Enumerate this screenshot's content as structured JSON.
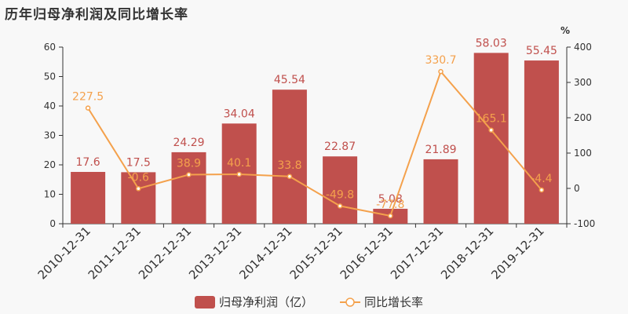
{
  "title": "历年归母净利润及同比增长率",
  "chart_data": {
    "type": "bar+line",
    "categories": [
      "2010-12-31",
      "2011-12-31",
      "2012-12-31",
      "2013-12-31",
      "2014-12-31",
      "2015-12-31",
      "2016-12-31",
      "2017-12-31",
      "2018-12-31",
      "2019-12-31"
    ],
    "bar_series": {
      "name": "归母净利润（亿）",
      "values": [
        17.6,
        17.5,
        24.29,
        34.04,
        45.54,
        22.87,
        5.08,
        21.89,
        58.03,
        55.45
      ],
      "labels": [
        "17.6",
        "17.5",
        "24.29",
        "34.04",
        "45.54",
        "22.87",
        "5.08",
        "21.89",
        "58.03",
        "55.45"
      ],
      "color": "#c0504d"
    },
    "line_series": {
      "name": "同比增长率",
      "values": [
        227.5,
        -0.6,
        38.9,
        40.1,
        33.8,
        -49.8,
        -77.8,
        330.7,
        165.1,
        -4.4
      ],
      "labels": [
        "227.5",
        "-0.6",
        "38.9",
        "40.1",
        "33.8",
        "-49.8",
        "-77.8",
        "330.7",
        "165.1",
        "-4.4"
      ],
      "color": "#f4a14c"
    },
    "y_left": {
      "ylim": [
        0,
        60
      ],
      "ticks": [
        "0",
        "10",
        "20",
        "30",
        "40",
        "50",
        "60"
      ]
    },
    "y_right": {
      "unit": "%",
      "ylim": [
        -100,
        400
      ],
      "ticks": [
        "-100",
        "0",
        "100",
        "200",
        "300",
        "400"
      ]
    },
    "legend_position": "bottom-center",
    "grid": false
  }
}
